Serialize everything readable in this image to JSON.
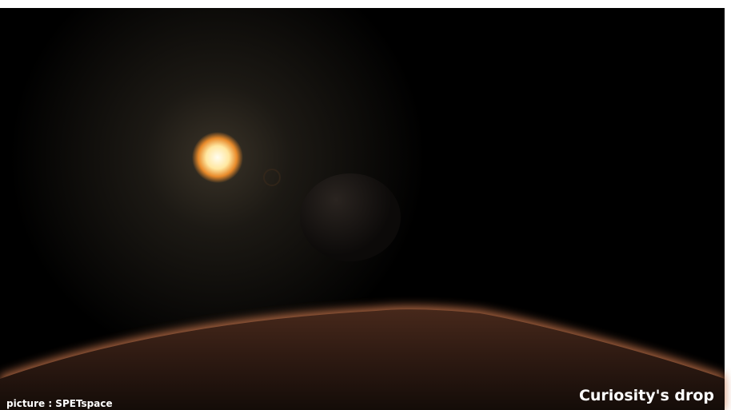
{
  "credit": "picture : SPETspace",
  "caption": "Curiosity's drop"
}
